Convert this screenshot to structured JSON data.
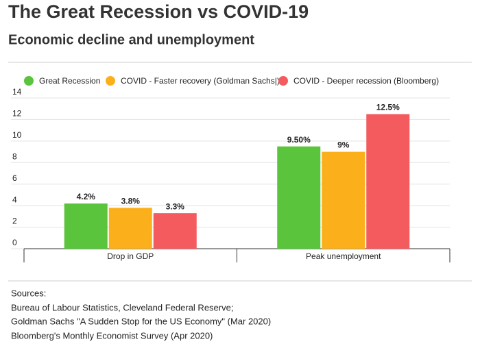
{
  "chart_data": {
    "type": "bar",
    "title": "The Great Recession vs COVID-19",
    "subtitle": "Economic decline and unemployment",
    "categories": [
      "Drop in GDP",
      "Peak unemployment"
    ],
    "series": [
      {
        "name": "Great Recession",
        "color": "#5ac43c",
        "values": [
          4.2,
          9.5
        ],
        "value_labels": [
          "4.2%",
          "9.50%"
        ]
      },
      {
        "name": "COVID - Faster recovery (Goldman Sachs|)",
        "color": "#fbb01b",
        "values": [
          3.8,
          9
        ],
        "value_labels": [
          "3.8%",
          "9%"
        ]
      },
      {
        "name": "COVID - Deeper recession (Bloomberg)",
        "color": "#f45b5e",
        "values": [
          3.3,
          12.5
        ],
        "value_labels": [
          "3.3%",
          "12.5%"
        ]
      }
    ],
    "ylim": [
      0,
      14
    ],
    "yticks": [
      0,
      2,
      4,
      6,
      8,
      10,
      12,
      14
    ],
    "grid": true,
    "legend": "top"
  },
  "sources": {
    "title": "Sources:",
    "lines": [
      "Bureau of Labour Statistics, Cleveland Federal Reserve;",
      "Goldman Sachs \"A Sudden Stop for the US Economy\" (Mar 2020)",
      "Bloomberg's Monthly Economist Survey (Apr 2020)"
    ]
  }
}
